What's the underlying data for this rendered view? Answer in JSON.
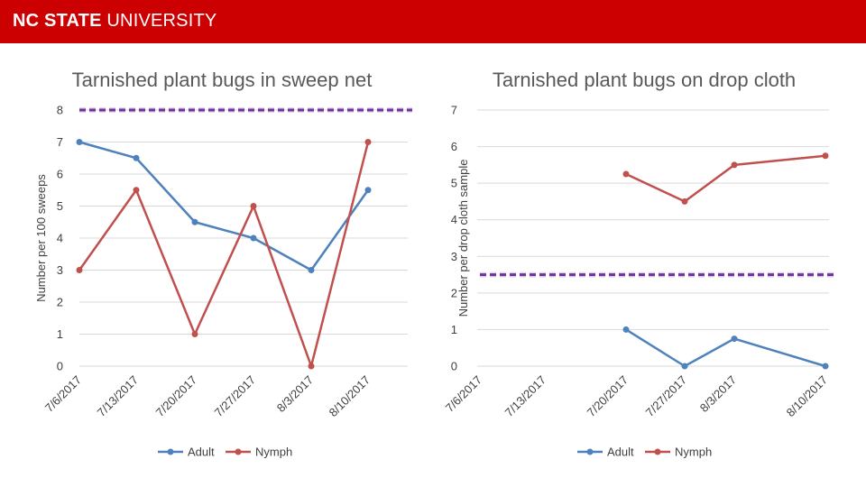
{
  "header": {
    "brand_bold": "NC STATE",
    "brand_regular": "UNIVERSITY",
    "color": "#cc0000"
  },
  "colors": {
    "adult": "#4f81bd",
    "nymph": "#c0504d",
    "threshold": "#7030a0",
    "threshold_glow": "#8064a2",
    "grid": "#d9d9d9"
  },
  "chart_data": [
    {
      "type": "line",
      "title": "Tarnished plant bugs in sweep net",
      "ylabel": "Number per 100 sweeps",
      "xlabel": "",
      "categories": [
        "7/6/2017",
        "7/13/2017",
        "7/20/2017",
        "7/27/2017",
        "8/3/2017",
        "8/10/2017"
      ],
      "x": [
        0,
        7,
        14,
        21,
        28,
        35
      ],
      "ylim": [
        0,
        8
      ],
      "yticks": [
        0,
        1,
        2,
        3,
        4,
        5,
        6,
        7,
        8
      ],
      "grid": true,
      "threshold": 8,
      "legend": "bottom",
      "series": [
        {
          "name": "Adult",
          "x": [
            0,
            7,
            14,
            21,
            28,
            35
          ],
          "values": [
            7,
            6.5,
            4.5,
            4,
            3,
            5.5
          ]
        },
        {
          "name": "Nymph",
          "x": [
            0,
            7,
            14,
            21,
            28,
            35
          ],
          "values": [
            3,
            5.5,
            1,
            5,
            0,
            7
          ]
        }
      ]
    },
    {
      "type": "line",
      "title": "Tarnished plant bugs on drop cloth",
      "ylabel": "Number per drop cloth sample",
      "xlabel": "",
      "categories": [
        "7/6/2017",
        "7/13/2017",
        "7/20/2017",
        "7/27/2017",
        "8/3/2017",
        "8/10/2017"
      ],
      "x": [
        0,
        7,
        14,
        21,
        28,
        35
      ],
      "ylim": [
        0,
        7
      ],
      "yticks": [
        0,
        1,
        2,
        3,
        4,
        5,
        6,
        7
      ],
      "grid": true,
      "threshold": 2.5,
      "legend": "bottom",
      "series": [
        {
          "name": "Adult",
          "x": [
            14,
            21,
            28,
            35
          ],
          "values": [
            1,
            0,
            0.75,
            0
          ]
        },
        {
          "name": "Nymph",
          "x": [
            14,
            21,
            28,
            35
          ],
          "values": [
            5.25,
            4.5,
            5.5,
            5.75
          ]
        }
      ]
    }
  ]
}
